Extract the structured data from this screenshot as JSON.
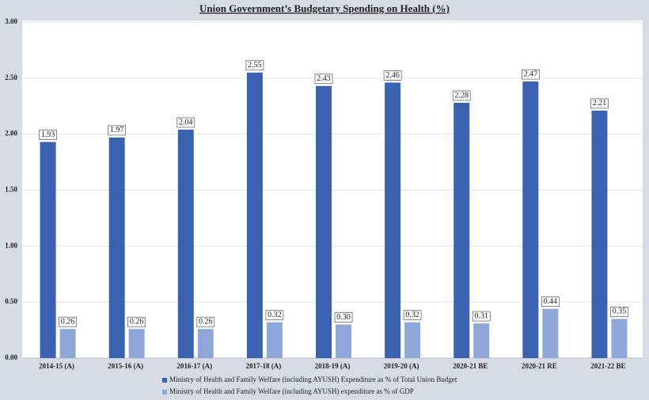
{
  "chart_data": {
    "type": "bar",
    "title": "Union Government’s Budgetary Spending on Health (%)",
    "categories": [
      "2014-15 (A)",
      "2015-16 (A)",
      "2016-17 (A)",
      "2017-18 (A)",
      "2018-19 (A)",
      "2019-20 (A)",
      "2020-21 BE",
      "2020-21 RE",
      "2021-22 BE"
    ],
    "series": [
      {
        "name": "Ministry of Health and Family Welfare (including AYUSH) Expenditure as % of Total Union Budget",
        "color": "#3a62b0",
        "values": [
          1.93,
          1.97,
          2.04,
          2.55,
          2.43,
          2.46,
          2.28,
          2.47,
          2.21
        ],
        "value_labels": [
          "1.93",
          "1.97",
          "2.04",
          "2.55",
          "2.43",
          "2.46",
          "2.28",
          "2.47",
          "2.21"
        ]
      },
      {
        "name": "Ministry of Health and Family Welfare (including AYUSH) expenditure as % of GDP",
        "color": "#8ea6d8",
        "values": [
          0.26,
          0.26,
          0.26,
          0.32,
          0.3,
          0.32,
          0.31,
          0.44,
          0.35
        ],
        "value_labels": [
          "0.26",
          "0.26",
          "0.26",
          "0.32",
          "0.30",
          "0.32",
          "0.31",
          "0.44",
          "0.35"
        ]
      }
    ],
    "ylim": [
      0,
      3
    ],
    "yticks": [
      {
        "value": 0,
        "label": "0.00"
      },
      {
        "value": 0.5,
        "label": "0.50"
      },
      {
        "value": 1,
        "label": "1.00"
      },
      {
        "value": 1.5,
        "label": "1.50"
      },
      {
        "value": 2,
        "label": "2.00"
      },
      {
        "value": 2.5,
        "label": "2.50"
      },
      {
        "value": 3,
        "label": "3.00"
      }
    ],
    "grid": true,
    "legend": "bottom"
  }
}
